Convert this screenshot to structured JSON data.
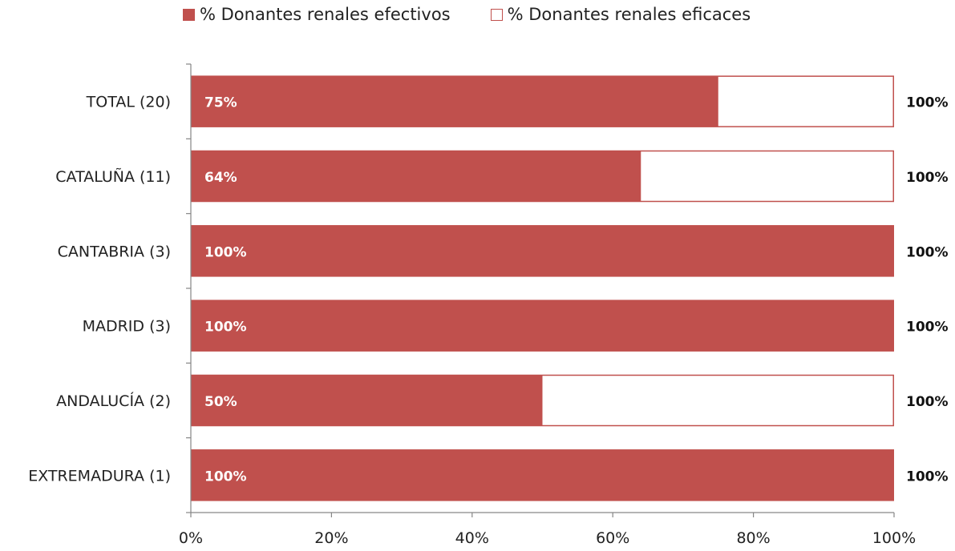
{
  "colors": {
    "efectivos": "#c0504d",
    "eficaces_border": "#c0504d",
    "axis": "#868686"
  },
  "chart_data": {
    "type": "bar",
    "orientation": "horizontal",
    "stacked": "overlay",
    "categories": [
      "TOTAL (20)",
      "CATALUÑA (11)",
      "CANTABRIA (3)",
      "MADRID (3)",
      "ANDALUCÍA (2)",
      "EXTREMADURA (1)"
    ],
    "series": [
      {
        "name": "% Donantes renales efectivos",
        "values": [
          75,
          64,
          100,
          100,
          50,
          100
        ],
        "labels": [
          "75%",
          "64%",
          "100%",
          "100%",
          "50%",
          "100%"
        ],
        "style": "filled"
      },
      {
        "name": "% Donantes renales eficaces",
        "values": [
          100,
          100,
          100,
          100,
          100,
          100
        ],
        "labels": [
          "100%",
          "100%",
          "100%",
          "100%",
          "100%",
          "100%"
        ],
        "style": "outline"
      }
    ],
    "x_ticks": [
      "0%",
      "20%",
      "40%",
      "60%",
      "80%",
      "100%"
    ],
    "xlim": [
      0,
      100
    ],
    "grid": false,
    "legend_position": "top"
  }
}
